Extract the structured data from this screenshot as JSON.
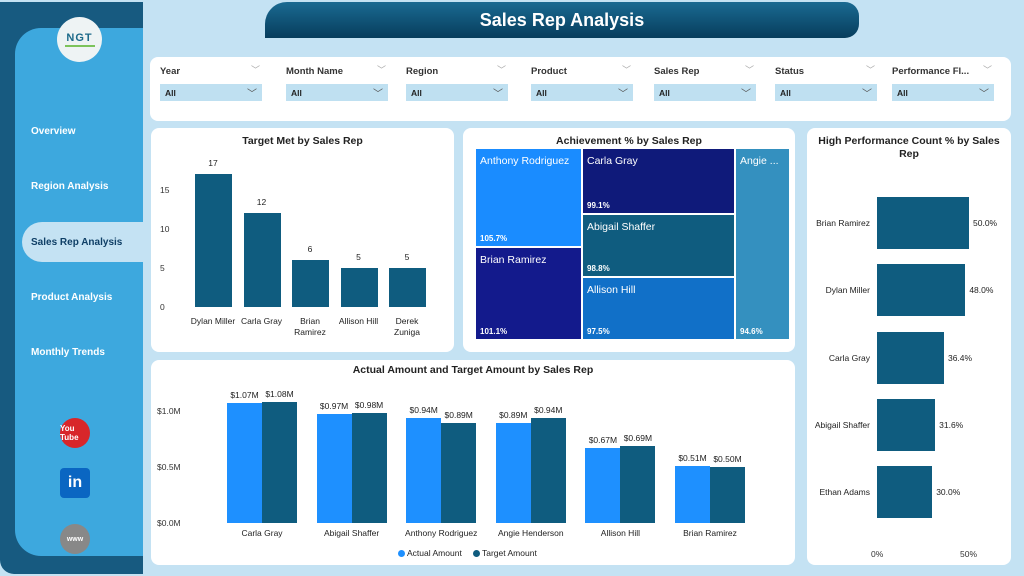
{
  "title": "Sales Rep Analysis",
  "logo": "NGT",
  "nav": [
    "Overview",
    "Region Analysis",
    "Sales Rep Analysis",
    "Product Analysis",
    "Monthly Trends"
  ],
  "active_nav": "Sales Rep Analysis",
  "social": [
    {
      "icon": "youtube-icon",
      "label": "You Tube",
      "color": "#d8262a"
    },
    {
      "icon": "linkedin-icon",
      "label": "in",
      "color": "#0a66c2"
    },
    {
      "icon": "globe-icon",
      "label": "www",
      "color": "#777"
    }
  ],
  "filters": [
    {
      "label": "Year",
      "value": "All"
    },
    {
      "label": "Month Name",
      "value": "All"
    },
    {
      "label": "Region",
      "value": "All"
    },
    {
      "label": "Product",
      "value": "All"
    },
    {
      "label": "Sales Rep",
      "value": "All"
    },
    {
      "label": "Status",
      "value": "All"
    },
    {
      "label": "Performance Fl...",
      "value": "All"
    }
  ],
  "colors": {
    "bar": "#0f5c7f",
    "actual": "#1e90ff",
    "target": "#0f5c7f",
    "sidebar": "#3da8de",
    "title": "#0b4a6e"
  },
  "chart_data": [
    {
      "type": "bar",
      "title": "Target Met by Sales Rep",
      "categories": [
        "Dylan Miller",
        "Carla Gray",
        "Brian Ramirez",
        "Allison Hill",
        "Derek Zuniga"
      ],
      "values": [
        17,
        12,
        6,
        5,
        5
      ],
      "yticks": [
        0,
        5,
        10,
        15
      ],
      "ylim": [
        0,
        18
      ]
    },
    {
      "type": "treemap",
      "title": "Achievement % by Sales Rep",
      "items": [
        {
          "name": "Anthony Rodriguez",
          "value": "105.7%",
          "color": "#1a8cff"
        },
        {
          "name": "Brian Ramirez",
          "value": "101.1%",
          "color": "#131a8c"
        },
        {
          "name": "Carla Gray",
          "value": "99.1%",
          "color": "#0f1a7a"
        },
        {
          "name": "Abigail Shaffer",
          "value": "98.8%",
          "color": "#0f5c7f"
        },
        {
          "name": "Allison Hill",
          "value": "97.5%",
          "color": "#1170c8"
        },
        {
          "name": "Angie ...",
          "value": "94.6%",
          "color": "#3490bf"
        }
      ]
    },
    {
      "type": "bar",
      "orientation": "horizontal",
      "title": "High Performance Count % by Sales Rep",
      "categories": [
        "Brian Ramirez",
        "Dylan Miller",
        "Carla Gray",
        "Abigail Shaffer",
        "Ethan Adams"
      ],
      "values": [
        50.0,
        48.0,
        36.4,
        31.6,
        30.0
      ],
      "labels": [
        "50.0%",
        "48.0%",
        "36.4%",
        "31.6%",
        "30.0%"
      ],
      "xticks": [
        "0%",
        "50%"
      ]
    },
    {
      "type": "bar",
      "title": "Actual Amount and Target Amount by Sales Rep",
      "categories": [
        "Carla Gray",
        "Abigail Shaffer",
        "Anthony Rodriguez",
        "Angie Henderson",
        "Allison Hill",
        "Brian Ramirez"
      ],
      "yticks": [
        "$0.0M",
        "$0.5M",
        "$1.0M"
      ],
      "series": [
        {
          "name": "Actual Amount",
          "values": [
            1.07,
            0.97,
            0.94,
            0.89,
            0.67,
            0.51
          ],
          "labels": [
            "$1.07M",
            "$0.97M",
            "$0.94M",
            "$0.89M",
            "$0.67M",
            "$0.51M"
          ]
        },
        {
          "name": "Target Amount",
          "values": [
            1.08,
            0.98,
            0.89,
            0.94,
            0.69,
            0.5
          ],
          "labels": [
            "$1.08M",
            "$0.98M",
            "$0.89M",
            "$0.94M",
            "$0.69M",
            "$0.50M"
          ]
        }
      ],
      "legend": "bottom"
    }
  ]
}
